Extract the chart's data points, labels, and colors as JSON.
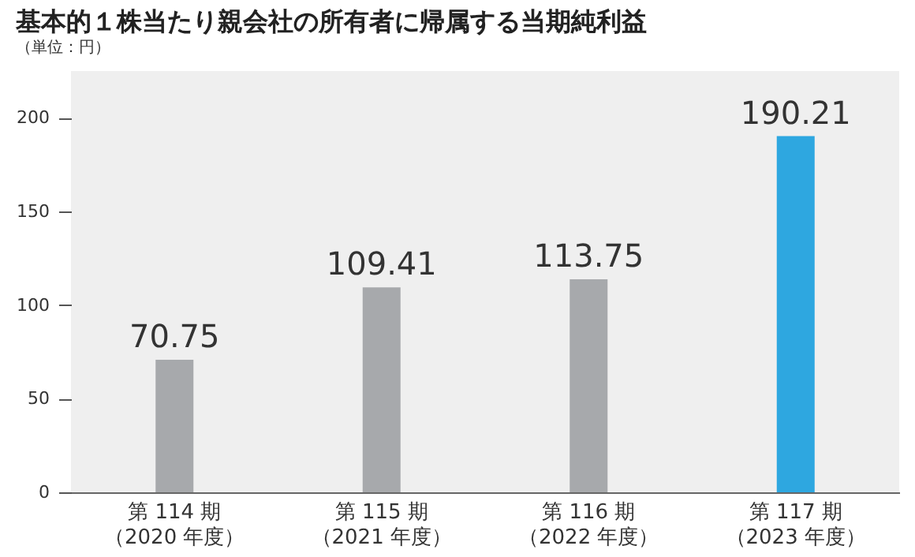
{
  "chart_data": {
    "type": "bar",
    "title": "基本的１株当たり親会社の所有者に帰属する当期純利益",
    "subtitle": "（単位：円）",
    "categories": [
      "第 114 期（2020 年度）",
      "第 115 期（2021 年度）",
      "第 116 期（2022 年度）",
      "第 117 期（2023 年度）"
    ],
    "values": [
      70.75,
      109.41,
      113.75,
      190.21
    ],
    "colors": [
      "#a7a9ac",
      "#a7a9ac",
      "#a7a9ac",
      "#2ea7e0"
    ],
    "ylim": [
      0,
      225
    ],
    "yticks": [
      0,
      50,
      100,
      150,
      200
    ],
    "grid": false,
    "data_labels": true
  }
}
